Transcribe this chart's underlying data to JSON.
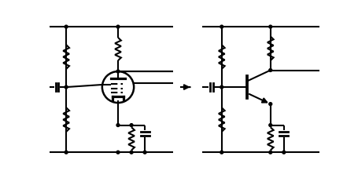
{
  "bg": "#ffffff",
  "fg": "#000000",
  "lw": 1.5,
  "fw": 4.56,
  "fh": 2.28,
  "dpi": 100
}
